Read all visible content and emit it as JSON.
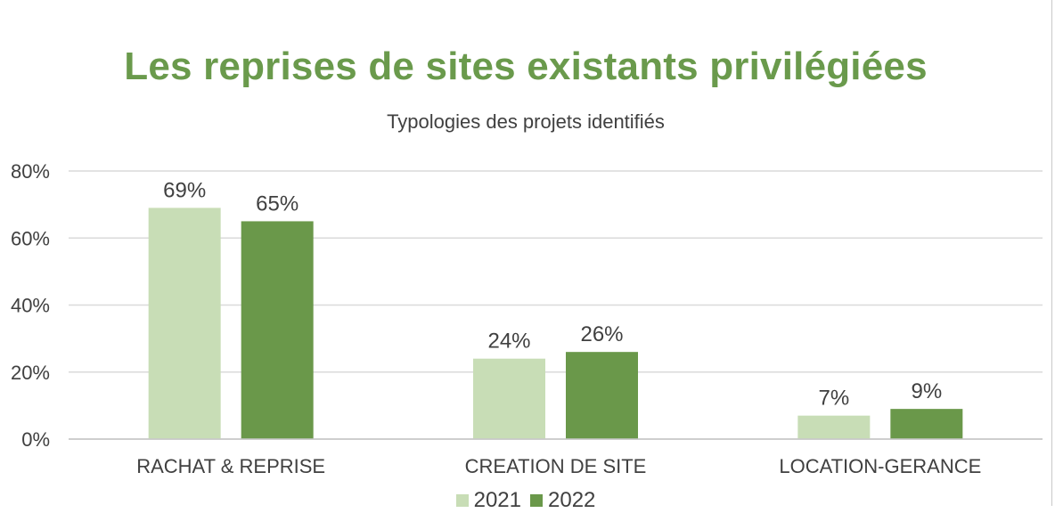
{
  "chart_data": {
    "type": "bar",
    "title": "Les reprises de sites existants privilégiées",
    "subtitle": "Typologies des projets identifiés",
    "categories": [
      "RACHAT & REPRISE",
      "CREATION DE SITE",
      "LOCATION-GERANCE"
    ],
    "series": [
      {
        "name": "2021",
        "values": [
          69,
          24,
          7
        ],
        "labels": [
          "69%",
          "24%",
          "7%"
        ],
        "color": "#c8ddb6"
      },
      {
        "name": "2022",
        "values": [
          65,
          26,
          9
        ],
        "labels": [
          "65%",
          "26%",
          "9%"
        ],
        "color": "#6a984a"
      }
    ],
    "ylim": [
      0,
      80
    ],
    "yticks": [
      "0%",
      "20%",
      "40%",
      "60%",
      "80%"
    ],
    "ytick_values": [
      0,
      20,
      40,
      60,
      80
    ],
    "grid": true,
    "legend_position": "bottom"
  }
}
